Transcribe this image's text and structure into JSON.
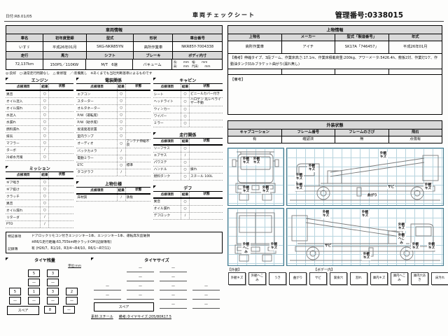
{
  "header": {
    "date": "日付:R8.01/05",
    "title": "車両チェックシート",
    "control_number": "管理番号:0338015"
  },
  "vehicle_info": {
    "title": "車両情報",
    "h1": [
      "車名",
      "初年度登録",
      "型式",
      "形状",
      "車台番号"
    ],
    "v1": [
      "いすゞ",
      "平成26年01月",
      "SKG-NKR85YN",
      "高所作業車",
      "NKR85Y-7004338"
    ],
    "h2": [
      "走行",
      "馬力",
      "シフト",
      "ブレーキ",
      "ボディ内寸"
    ],
    "v2": [
      "72,137km",
      "150PS／110KW",
      "M/T　6速",
      "バキューム"
    ],
    "body_dims_line1": "長:　　mm　幅:　　mm",
    "body_dims_line2": "高:　　mm　門高:　　mm"
  },
  "legend_line": "◎:良好　○:通常走行問題なし　△:要修理　／:装備無し　※あくまでも当社判断基準によるものです",
  "check_headers": [
    "点検項目",
    "結果",
    "状態"
  ],
  "check_tables": [
    {
      "id": "engine",
      "title": "エンジン",
      "rows": [
        [
          "異音",
          "○",
          ""
        ],
        [
          "オイル混入",
          "○",
          ""
        ],
        [
          "オイル漏れ",
          "○",
          ""
        ],
        [
          "水混入",
          "○",
          ""
        ],
        [
          "水漏れ",
          "○",
          ""
        ],
        [
          "燃料漏れ",
          "○",
          ""
        ],
        [
          "排気",
          "○",
          ""
        ],
        [
          "マフラー",
          "○",
          ""
        ],
        [
          "ターボ",
          "/",
          ""
        ],
        [
          "冷却水汚濁",
          "○",
          ""
        ]
      ]
    },
    {
      "id": "mission",
      "title": "ミッション",
      "rows": [
        [
          "ギア鳴き",
          "○",
          ""
        ],
        [
          "ギア抜け",
          "○",
          ""
        ],
        [
          "クラッチ",
          "○",
          ""
        ],
        [
          "異音",
          "○",
          ""
        ],
        [
          "オイル漏れ",
          "○",
          ""
        ],
        [
          "リターダ",
          "/",
          ""
        ],
        [
          "PTO",
          "/",
          ""
        ]
      ]
    },
    {
      "id": "electrical",
      "title": "電装関係",
      "rows": [
        [
          "エアコン",
          "○",
          ""
        ],
        [
          "スターター",
          "○",
          ""
        ],
        [
          "オルタネーター",
          "○",
          ""
        ],
        [
          "P/W（運転席）",
          "○",
          ""
        ],
        [
          "P/W（助手席）",
          "○",
          ""
        ],
        [
          "坂道発進装置",
          "○",
          ""
        ],
        [
          "室内ランプ",
          "○",
          ""
        ],
        [
          "オーディオ",
          "○",
          "アンテナ伸縮不良"
        ],
        [
          "バックカメラ",
          "/",
          ""
        ],
        [
          "電動ミラー",
          "○",
          ""
        ],
        [
          "ETC",
          "○",
          "標準"
        ],
        [
          "タコグラフ",
          "/",
          ""
        ]
      ]
    },
    {
      "id": "body_spec",
      "title": "上物仕様",
      "rows": [
        [
          "床材質",
          "/",
          "鉄板"
        ]
      ]
    },
    {
      "id": "cabin",
      "title": "キャビン",
      "rows": [
        [
          "シート",
          "○",
          "ビニールカバー付き"
        ],
        [
          "ヘッドライト",
          "○",
          "ハロゲン 光レベライザー不動"
        ],
        [
          "ウィンカー",
          "○",
          ""
        ],
        [
          "ワイパー",
          "○",
          ""
        ],
        [
          "ミラー",
          "○",
          ""
        ]
      ]
    },
    {
      "id": "driving",
      "title": "走行関係",
      "rows": [
        [
          "リーフサス",
          "○",
          ""
        ],
        [
          "エアサス",
          "/",
          ""
        ],
        [
          "パワステ",
          "○",
          ""
        ],
        [
          "ハンドル",
          "○",
          "振れ"
        ],
        [
          "燃料タンク",
          "○",
          "スチール 100L"
        ]
      ]
    },
    {
      "id": "diff",
      "title": "デフ",
      "rows": [
        [
          "異音",
          "○",
          ""
        ],
        [
          "オイル漏れ",
          "○",
          ""
        ],
        [
          "デフロック",
          "/",
          ""
        ]
      ]
    }
  ],
  "notes": {
    "label": "特記事項",
    "line1": "ドアロックリモコン付きエンジンキー1本、エンジンキー1本、運転席灰皿破損",
    "line2": "※R6/1走行距離:63,755km時クラッチOH(記録簿有)",
    "record_label": "記録簿",
    "record_value": "有 (H26/7、R1/10、R3/4～R4/10、R6/1～R7/11)"
  },
  "tires": {
    "remaining_title": "タイヤ残量",
    "unit": "単位:mm",
    "front": [
      "5",
      "3"
    ],
    "front_dash": [
      "—",
      "—"
    ],
    "rear": [
      "5",
      "1",
      "3",
      "2"
    ],
    "rear_dash": [
      "—",
      "—",
      "—",
      "—"
    ],
    "spare_label": "スペア",
    "spare_value": "8",
    "spare_dash": "—",
    "size_title": "タイヤサイズ",
    "size_r1": [
      "—",
      "—"
    ],
    "size_r2": [
      "—",
      "—"
    ],
    "size_r3": [
      "—",
      "—",
      "—",
      "—"
    ],
    "size_r4": [
      "—",
      "—",
      "—",
      "—"
    ],
    "size_spare_label": "スペア",
    "size_spare_cells": [
      "—",
      "—"
    ],
    "material": "素材:スチール",
    "size_note": "備考:タイヤサイズ:205/80R17.5"
  },
  "body_info": {
    "title": "上物情報",
    "headers": [
      "上物名",
      "メーカー",
      "型式「製造番号」",
      "年式"
    ],
    "values": [
      "高所作業車",
      "アイチ",
      "SK17A「746457」",
      "平成26年01月"
    ],
    "remark1": "【備考】伸縮タイプ、3段ブーム、作業床高さ:17.1m、作業床積載荷重:200kg、アワーメータ:5426.4h、敷板2対、作業灯1ケ、作動油タンク凹みブラケット曲がり(漏れ無し)",
    "remark2_label": "【備考】"
  },
  "exterior": {
    "title": "外装状態",
    "headers": [
      "キャブコーション",
      "フレーム番号",
      "フレームのさび",
      "飛石"
    ],
    "values": [
      "有",
      "確認済",
      "無",
      "点傷有"
    ]
  },
  "diagram_labels": [
    "外観キズ",
    "外観キズ",
    "外観キズ",
    "外観キズ",
    "外観キズ",
    "外観キズ",
    "外観キズ",
    "外観キズ",
    "サビ",
    "外観キズ",
    "曲がり",
    "外観へこみ",
    "外観キズ",
    "外観キズ",
    "外観キズ",
    "外観キズ",
    "外観へこみ",
    "サビ",
    "外観キズ",
    "外観キズ",
    "外観キズ"
  ],
  "damage_legend": {
    "exterior_label": "【外装】",
    "body_label": "【ボデー内】",
    "items": [
      "外観キズ",
      "外観へこみ",
      "うき",
      "曲がり",
      "サビ",
      "腐食穴",
      "割れ",
      "庫内キズ",
      "庫内へこみ",
      "庫内穴あき",
      "床汚れ"
    ]
  }
}
